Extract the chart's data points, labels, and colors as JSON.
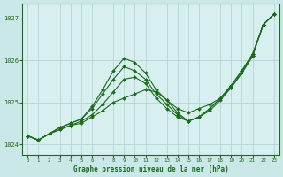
{
  "title": "Graphe pression niveau de la mer (hPa)",
  "bg_color": "#cbe8e8",
  "plot_bg_color": "#d8efef",
  "grid_color": "#b0d0d0",
  "line_color": "#1a6b1a",
  "xlim": [
    -0.5,
    23.5
  ],
  "ylim": [
    1023.75,
    1027.35
  ],
  "yticks": [
    1024,
    1025,
    1026,
    1027
  ],
  "xticks": [
    0,
    1,
    2,
    3,
    4,
    5,
    6,
    7,
    8,
    9,
    10,
    11,
    12,
    13,
    14,
    15,
    16,
    17,
    18,
    19,
    20,
    21,
    22,
    23
  ],
  "line1": [
    1024.2,
    1024.1,
    1024.25,
    1024.35,
    1024.45,
    1024.5,
    1024.65,
    1024.8,
    1025.0,
    1025.1,
    1025.2,
    1025.3,
    1025.25,
    1025.05,
    1024.85,
    1024.75,
    1024.85,
    1024.95,
    1025.1,
    1025.35,
    1025.7,
    1026.1,
    1026.85,
    1027.1
  ],
  "line2": [
    1024.2,
    1024.1,
    1024.25,
    1024.35,
    1024.45,
    1024.55,
    1024.7,
    1024.95,
    1025.25,
    1025.55,
    1025.6,
    1025.45,
    1025.1,
    1024.85,
    1024.65,
    1024.55,
    1024.65,
    1024.8,
    1025.05,
    1025.35,
    1025.7,
    1026.1,
    1026.85,
    1027.1
  ],
  "line3": [
    1024.2,
    1024.1,
    1024.25,
    1024.4,
    1024.5,
    1024.6,
    1024.85,
    1025.2,
    1025.55,
    1025.85,
    1025.75,
    1025.55,
    1025.2,
    1024.95,
    1024.7,
    1024.55,
    1024.65,
    1024.85,
    1025.1,
    1025.4,
    1025.75,
    1026.15,
    1026.85,
    1027.1
  ],
  "line4": [
    1024.2,
    1024.1,
    1024.25,
    1024.4,
    1024.5,
    1024.6,
    1024.9,
    1025.3,
    1025.75,
    1026.05,
    1025.95,
    1025.7,
    1025.3,
    1025.05,
    1024.75,
    1024.55,
    1024.65,
    1024.85,
    1025.1,
    1025.4,
    1025.75,
    1026.15,
    1026.85,
    1027.1
  ]
}
